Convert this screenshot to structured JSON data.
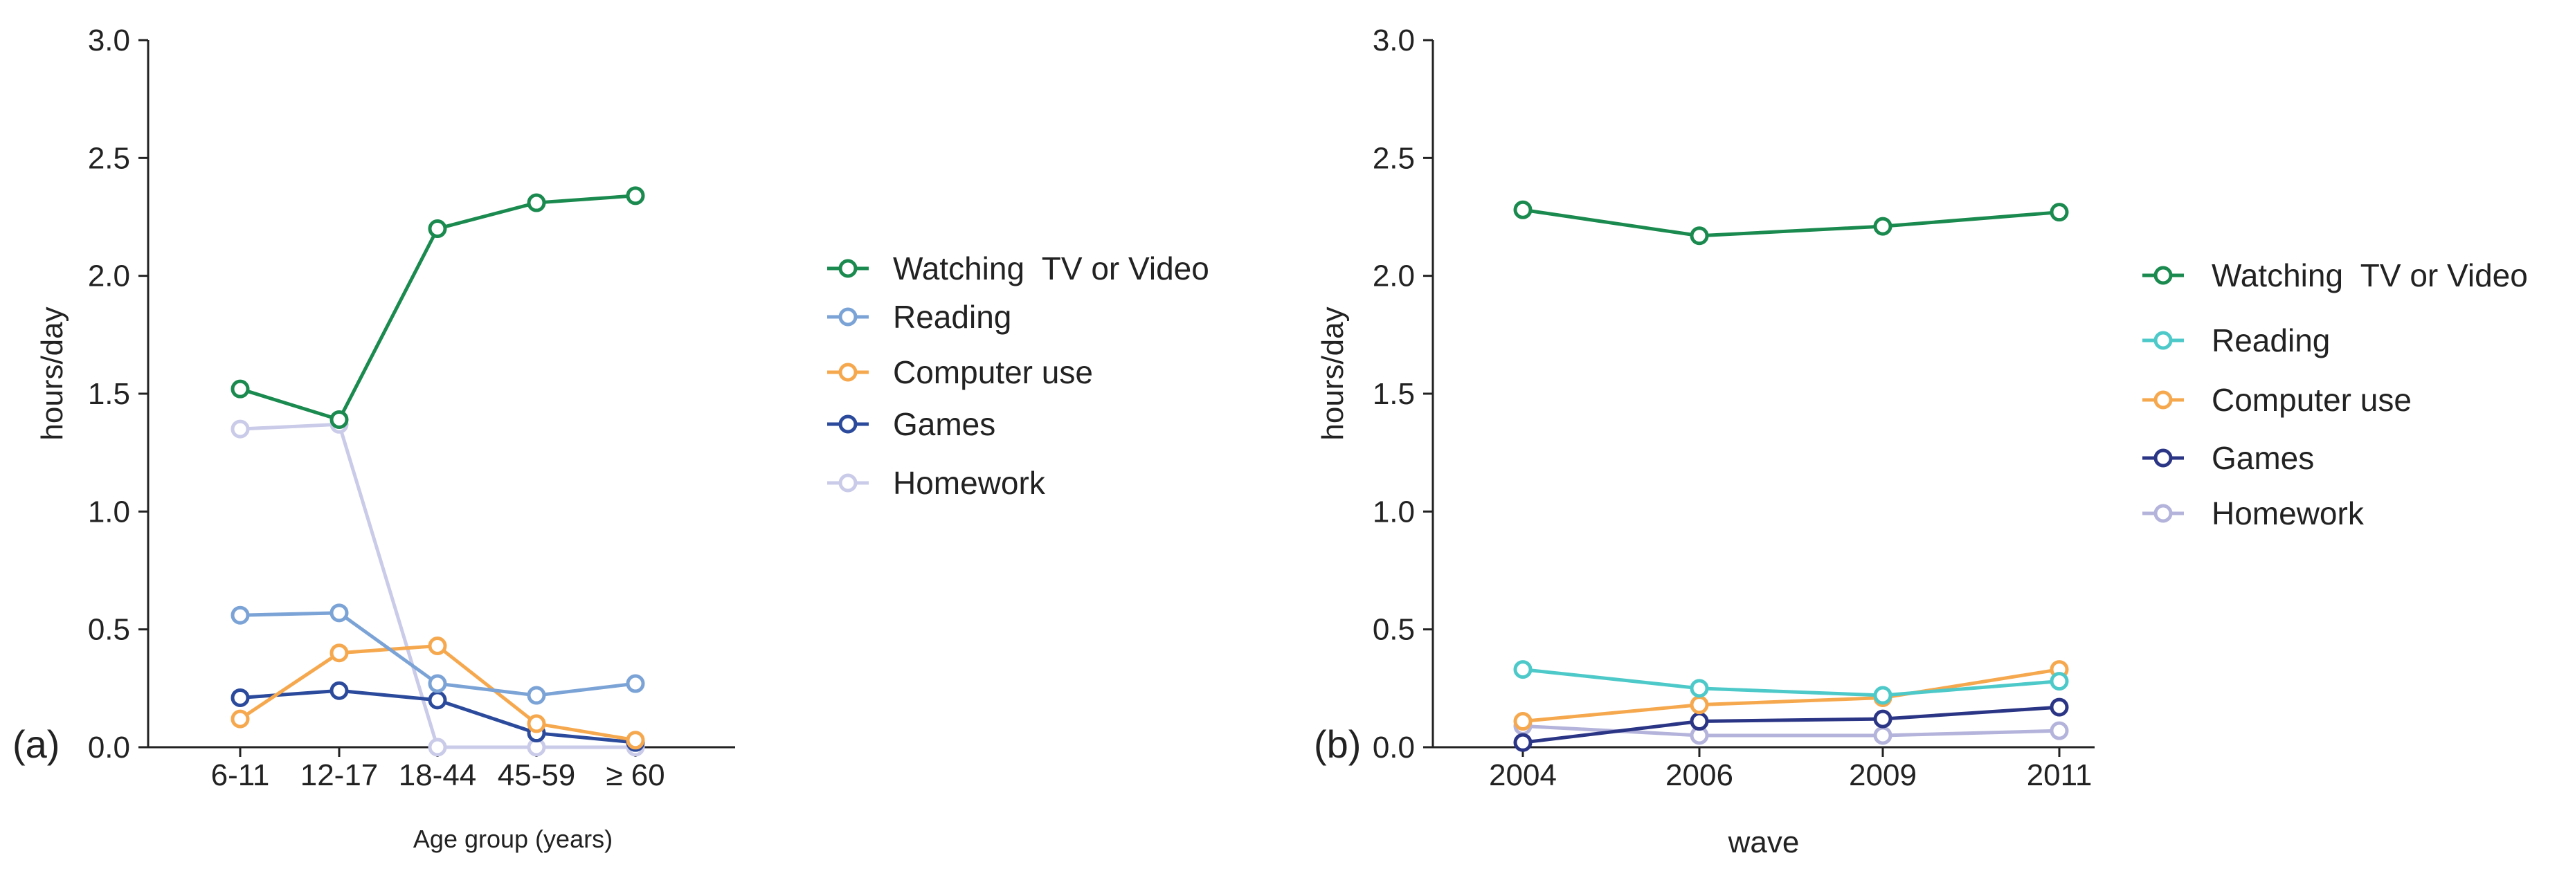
{
  "chart_data": [
    {
      "panel_label": "(a)",
      "type": "line",
      "xlabel": "Age group (years)",
      "ylabel": "hours/day",
      "ylim": [
        0,
        3.0
      ],
      "yticks": [
        "0.0",
        "0.5",
        "1.0",
        "1.5",
        "2.0",
        "2.5",
        "3.0"
      ],
      "categories": [
        "6-11",
        "12-17",
        "18-44",
        "45-59",
        "≥ 60"
      ],
      "legend_position": "right",
      "series": [
        {
          "name": "Watching  TV or Video",
          "color": "#1a8a4f",
          "values": [
            1.52,
            1.39,
            2.2,
            2.31,
            2.34
          ]
        },
        {
          "name": "Reading",
          "color": "#7ba3d6",
          "values": [
            0.56,
            0.57,
            0.27,
            0.22,
            0.27
          ]
        },
        {
          "name": "Computer use",
          "color": "#f6a84e",
          "values": [
            0.12,
            0.4,
            0.43,
            0.1,
            0.03
          ]
        },
        {
          "name": "Games",
          "color": "#2b4a9c",
          "values": [
            0.21,
            0.24,
            0.2,
            0.06,
            0.02
          ]
        },
        {
          "name": "Homework",
          "color": "#c9cbe8",
          "values": [
            1.35,
            1.37,
            0.0,
            0.0,
            0.0
          ]
        }
      ]
    },
    {
      "panel_label": "(b)",
      "type": "line",
      "xlabel": "wave",
      "ylabel": "hours/day",
      "ylim": [
        0,
        3.0
      ],
      "yticks": [
        "0.0",
        "0.5",
        "1.0",
        "1.5",
        "2.0",
        "2.5",
        "3.0"
      ],
      "categories": [
        "2004",
        "2006",
        "2009",
        "2011"
      ],
      "legend_position": "right",
      "series": [
        {
          "name": "Watching  TV or Video",
          "color": "#1a8a4f",
          "values": [
            2.28,
            2.17,
            2.21,
            2.27
          ]
        },
        {
          "name": "Reading",
          "color": "#4ec9c9",
          "values": [
            0.33,
            0.25,
            0.22,
            0.28
          ]
        },
        {
          "name": "Computer use",
          "color": "#f6a84e",
          "values": [
            0.11,
            0.18,
            0.21,
            0.33
          ]
        },
        {
          "name": "Games",
          "color": "#2b3585",
          "values": [
            0.02,
            0.11,
            0.12,
            0.17
          ]
        },
        {
          "name": "Homework",
          "color": "#b3b3db",
          "values": [
            0.09,
            0.05,
            0.05,
            0.07
          ]
        }
      ]
    }
  ]
}
